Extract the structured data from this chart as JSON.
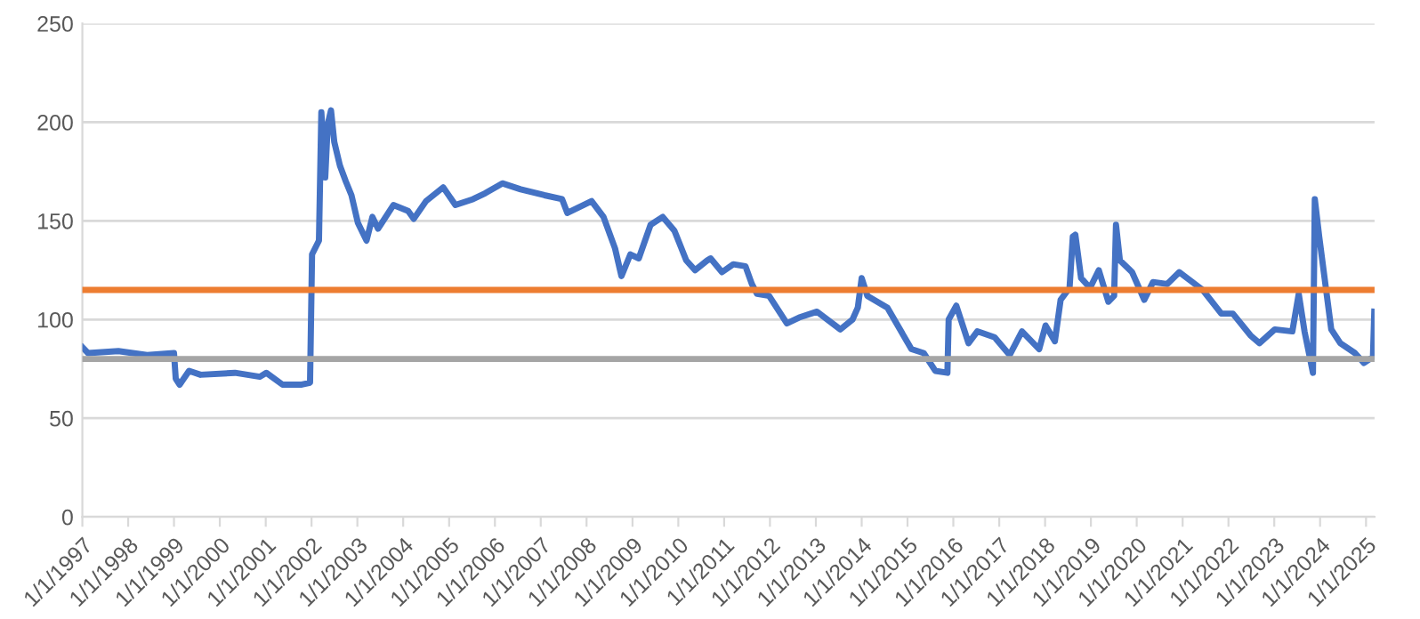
{
  "chart_data": {
    "type": "line",
    "x": [
      "1997-01-01",
      "1997-02-15",
      "1997-10-15",
      "1998-06-01",
      "1999-01-01",
      "1999-01-15",
      "1999-02-15",
      "1999-05-01",
      "1999-08-01",
      "2000-05-01",
      "2000-11-15",
      "2001-01-05",
      "2001-05-15",
      "2001-10-15",
      "2001-12-20",
      "2002-01-05",
      "2002-03-01",
      "2002-03-20",
      "2002-04-20",
      "2002-05-10",
      "2002-06-05",
      "2002-07-01",
      "2002-08-15",
      "2002-10-01",
      "2002-11-15",
      "2003-01-05",
      "2003-03-15",
      "2003-05-01",
      "2003-06-15",
      "2003-10-15",
      "2004-02-10",
      "2004-03-25",
      "2004-07-01",
      "2004-11-15",
      "2005-02-20",
      "2005-07-10",
      "2005-10-15",
      "2006-03-01",
      "2006-07-25",
      "2007-01-30",
      "2007-06-20",
      "2007-08-01",
      "2008-02-10",
      "2008-05-15",
      "2008-08-15",
      "2008-10-05",
      "2008-12-15",
      "2009-02-20",
      "2009-05-25",
      "2009-08-30",
      "2009-12-01",
      "2010-03-05",
      "2010-05-15",
      "2010-08-20",
      "2010-09-15",
      "2010-12-15",
      "2011-03-15",
      "2011-06-20",
      "2011-08-10",
      "2011-09-20",
      "2011-12-25",
      "2012-05-15",
      "2012-08-20",
      "2013-01-10",
      "2013-07-15",
      "2013-10-20",
      "2013-12-01",
      "2014-01-01",
      "2014-02-15",
      "2014-07-25",
      "2015-02-01",
      "2015-05-10",
      "2015-08-10",
      "2015-11-15",
      "2015-11-25",
      "2016-01-25",
      "2016-05-01",
      "2016-07-10",
      "2016-11-25",
      "2017-03-25",
      "2017-07-01",
      "2017-11-15",
      "2018-01-05",
      "2018-03-20",
      "2018-05-05",
      "2018-07-15",
      "2018-08-10",
      "2018-08-30",
      "2018-10-15",
      "2018-12-25",
      "2019-03-05",
      "2019-05-20",
      "2019-07-05",
      "2019-07-20",
      "2019-08-20",
      "2019-11-25",
      "2020-03-01",
      "2020-05-10",
      "2020-09-01",
      "2020-12-05",
      "2021-06-10",
      "2021-11-05",
      "2022-02-05",
      "2022-06-25",
      "2022-09-05",
      "2023-01-05",
      "2023-05-25",
      "2023-07-15",
      "2023-08-30",
      "2023-11-05",
      "2023-11-20",
      "2023-12-25",
      "2024-03-30",
      "2024-06-10",
      "2024-10-05",
      "2024-12-15",
      "2025-02-25",
      "2025-03-08"
    ],
    "series": [
      {
        "color": "#4472c4",
        "values": [
          86,
          83,
          84,
          82,
          83,
          70,
          67,
          74,
          72,
          73,
          71,
          73,
          67,
          67,
          68,
          133,
          140,
          205,
          172,
          199,
          206,
          190,
          178,
          170,
          163,
          149,
          140,
          152,
          146,
          158,
          155,
          151,
          160,
          167,
          158,
          161,
          164,
          169,
          166,
          163,
          161,
          154,
          160,
          152,
          136,
          122,
          133,
          131,
          148,
          152,
          145,
          130,
          125,
          130,
          131,
          124,
          128,
          127,
          118,
          113,
          112,
          98,
          101,
          104,
          95,
          100,
          106,
          121,
          112,
          106,
          85,
          83,
          74,
          73,
          100,
          107,
          88,
          94,
          91,
          82,
          94,
          85,
          97,
          89,
          110,
          116,
          142,
          143,
          121,
          116,
          125,
          109,
          112,
          148,
          130,
          124,
          110,
          119,
          118,
          124,
          115,
          103,
          103,
          92,
          88,
          95,
          94,
          113,
          94,
          73,
          161,
          142,
          95,
          88,
          83,
          78,
          81,
          104
        ]
      }
    ],
    "xlim": [
      "1997-01-01",
      "2025-03-10"
    ],
    "xticks": [
      {
        "value": "1997-01-01",
        "label": "1/1/1997"
      },
      {
        "value": "1998-01-01",
        "label": "1/1/1998"
      },
      {
        "value": "1999-01-01",
        "label": "1/1/1999"
      },
      {
        "value": "2000-01-01",
        "label": "1/1/2000"
      },
      {
        "value": "2001-01-01",
        "label": "1/1/2001"
      },
      {
        "value": "2002-01-01",
        "label": "1/1/2002"
      },
      {
        "value": "2003-01-01",
        "label": "1/1/2003"
      },
      {
        "value": "2004-01-01",
        "label": "1/1/2004"
      },
      {
        "value": "2005-01-01",
        "label": "1/1/2005"
      },
      {
        "value": "2006-01-01",
        "label": "1/1/2006"
      },
      {
        "value": "2007-01-01",
        "label": "1/1/2007"
      },
      {
        "value": "2008-01-01",
        "label": "1/1/2008"
      },
      {
        "value": "2009-01-01",
        "label": "1/1/2009"
      },
      {
        "value": "2010-01-01",
        "label": "1/1/2010"
      },
      {
        "value": "2011-01-01",
        "label": "1/1/2011"
      },
      {
        "value": "2012-01-01",
        "label": "1/1/2012"
      },
      {
        "value": "2013-01-01",
        "label": "1/1/2013"
      },
      {
        "value": "2014-01-01",
        "label": "1/1/2014"
      },
      {
        "value": "2015-01-01",
        "label": "1/1/2015"
      },
      {
        "value": "2016-01-01",
        "label": "1/1/2016"
      },
      {
        "value": "2017-01-01",
        "label": "1/1/2017"
      },
      {
        "value": "2018-01-01",
        "label": "1/1/2018"
      },
      {
        "value": "2019-01-01",
        "label": "1/1/2019"
      },
      {
        "value": "2020-01-01",
        "label": "1/1/2020"
      },
      {
        "value": "2021-01-01",
        "label": "1/1/2021"
      },
      {
        "value": "2022-01-01",
        "label": "1/1/2022"
      },
      {
        "value": "2023-01-01",
        "label": "1/1/2023"
      },
      {
        "value": "2024-01-01",
        "label": "1/1/2024"
      },
      {
        "value": "2025-01-01",
        "label": "1/1/2025"
      }
    ],
    "ylim": [
      0,
      250
    ],
    "yticks": [
      0,
      50,
      100,
      150,
      200,
      250
    ],
    "ref_lines": [
      {
        "axis": "y",
        "value": 115,
        "color": "#ed7d31"
      },
      {
        "axis": "y",
        "value": 80,
        "color": "#a5a5a5"
      }
    ],
    "grid": "y",
    "line_style": "solid"
  }
}
